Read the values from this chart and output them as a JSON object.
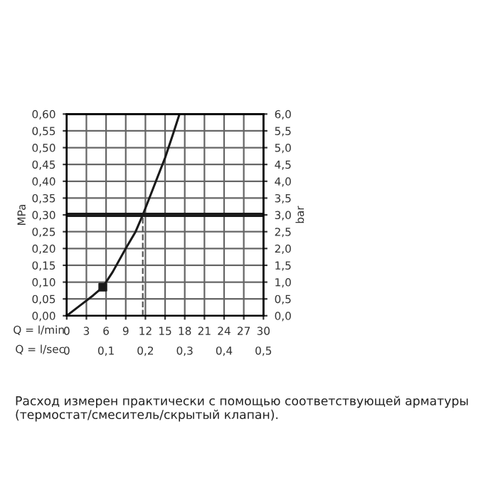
{
  "chart_data": {
    "type": "line",
    "xlabel": "Q = l/min",
    "x2label": "Q = l/sec",
    "ylabel": "MPa",
    "y2label": "bar",
    "xlim": [
      0,
      30
    ],
    "xticks": [
      0,
      3,
      6,
      9,
      12,
      15,
      18,
      21,
      24,
      27,
      30
    ],
    "x2lim": [
      0,
      0.5
    ],
    "x2ticks": [
      0,
      {
        "value": 0.1,
        "label": "0,1"
      },
      {
        "value": 0.2,
        "label": "0,2"
      },
      {
        "value": 0.3,
        "label": "0,3"
      },
      {
        "value": 0.4,
        "label": "0,4"
      },
      {
        "value": 0.5,
        "label": "0,5"
      }
    ],
    "ylim": [
      0,
      0.6
    ],
    "yticks": [
      {
        "value": 0,
        "label": "0,00"
      },
      {
        "value": 0.05,
        "label": "0,05"
      },
      {
        "value": 0.1,
        "label": "0,10"
      },
      {
        "value": 0.15,
        "label": "0,15"
      },
      {
        "value": 0.2,
        "label": "0,20"
      },
      {
        "value": 0.25,
        "label": "0,25"
      },
      {
        "value": 0.3,
        "label": "0,30"
      },
      {
        "value": 0.35,
        "label": "0,35"
      },
      {
        "value": 0.4,
        "label": "0,40"
      },
      {
        "value": 0.45,
        "label": "0,45"
      },
      {
        "value": 0.5,
        "label": "0,50"
      },
      {
        "value": 0.55,
        "label": "0,55"
      },
      {
        "value": 0.6,
        "label": "0,60"
      }
    ],
    "y2lim": [
      0,
      6
    ],
    "y2ticks": [
      {
        "value": 0,
        "label": "0,0"
      },
      {
        "value": 0.5,
        "label": "0,5"
      },
      {
        "value": 1,
        "label": "1,0"
      },
      {
        "value": 1.5,
        "label": "1,5"
      },
      {
        "value": 2,
        "label": "2,0"
      },
      {
        "value": 2.5,
        "label": "2,5"
      },
      {
        "value": 3,
        "label": "3,0"
      },
      {
        "value": 3.5,
        "label": "3,5"
      },
      {
        "value": 4,
        "label": "4,0"
      },
      {
        "value": 4.5,
        "label": "4,5"
      },
      {
        "value": 5,
        "label": "5,0"
      },
      {
        "value": 5.5,
        "label": "5,5"
      },
      {
        "value": 6,
        "label": "6,0"
      }
    ],
    "grid": true,
    "series": [
      {
        "color": "#1a1a1a",
        "x": [
          0,
          2,
          4,
          5.5,
          7,
          9,
          10.5,
          11.6,
          13,
          15,
          16.2,
          17.2
        ],
        "values": [
          0,
          0.03,
          0.06,
          0.085,
          0.13,
          0.2,
          0.25,
          0.3,
          0.37,
          0.47,
          0.54,
          0.6
        ]
      },
      {
        "type": "line",
        "color": "#555555",
        "line_style": "dashed",
        "x": [
          11.6,
          11.6
        ],
        "values": [
          0,
          0.3
        ]
      },
      {
        "type": "scatter",
        "color": "#1a1a1a",
        "marker": "square",
        "x": [
          5.5
        ],
        "values": [
          0.085
        ]
      }
    ],
    "ref_lines": [
      {
        "axis": "y",
        "value": 0.3,
        "color": "#1a1a1a"
      }
    ],
    "annotations": [
      "Расход измерен практически с помощью соответствующей арматуры (термостат/смеситель/скрытый клапан)."
    ]
  }
}
